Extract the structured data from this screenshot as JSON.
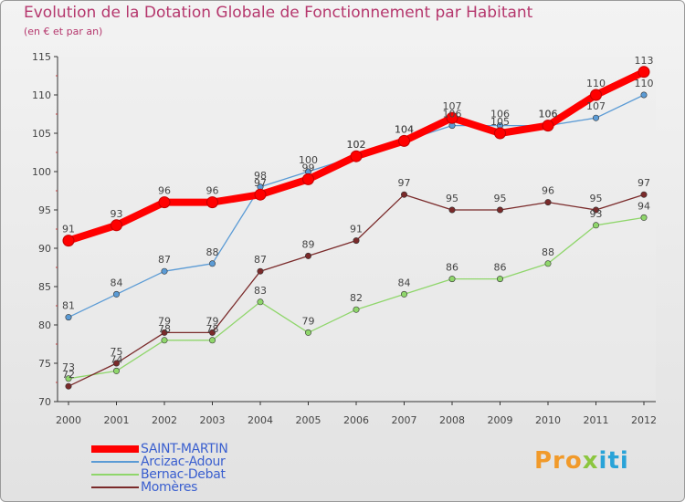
{
  "title": "Evolution de la Dotation Globale de Fonctionnement par Habitant",
  "subtitle": "(en € et par an)",
  "logo": {
    "text": "Proxiti",
    "part1": "Pro",
    "part2": "x",
    "part3": "iti"
  },
  "chart_data": {
    "type": "line",
    "title": "Evolution de la Dotation Globale de Fonctionnement par Habitant",
    "subtitle": "(en € et par an)",
    "xlabel": "",
    "ylabel": "",
    "x": [
      "2000",
      "2001",
      "2002",
      "2003",
      "2004",
      "2005",
      "2006",
      "2007",
      "2008",
      "2009",
      "2010",
      "2011",
      "2012"
    ],
    "ylim": [
      70,
      115
    ],
    "yticks": [
      "70",
      "75",
      "80",
      "85",
      "90",
      "95",
      "100",
      "105",
      "110",
      "115"
    ],
    "grid": false,
    "legend_position": "bottom-left",
    "series": [
      {
        "name": "SAINT-MARTIN",
        "color": "#ff0000",
        "values": [
          91,
          93,
          96,
          96,
          97,
          99,
          102,
          104,
          107,
          105,
          106,
          110,
          113
        ]
      },
      {
        "name": "Arcizac-Adour",
        "color": "#5b9bd5",
        "values": [
          81,
          84,
          87,
          88,
          98,
          100,
          102,
          104,
          106,
          106,
          106,
          107,
          110
        ]
      },
      {
        "name": "Bernac-Debat",
        "color": "#8fd66b",
        "values": [
          73,
          74,
          78,
          78,
          83,
          79,
          82,
          84,
          86,
          86,
          88,
          93,
          94
        ]
      },
      {
        "name": "Momères",
        "color": "#7a2a2a",
        "values": [
          72,
          75,
          79,
          79,
          87,
          89,
          91,
          97,
          95,
          95,
          96,
          95,
          97
        ]
      }
    ]
  }
}
